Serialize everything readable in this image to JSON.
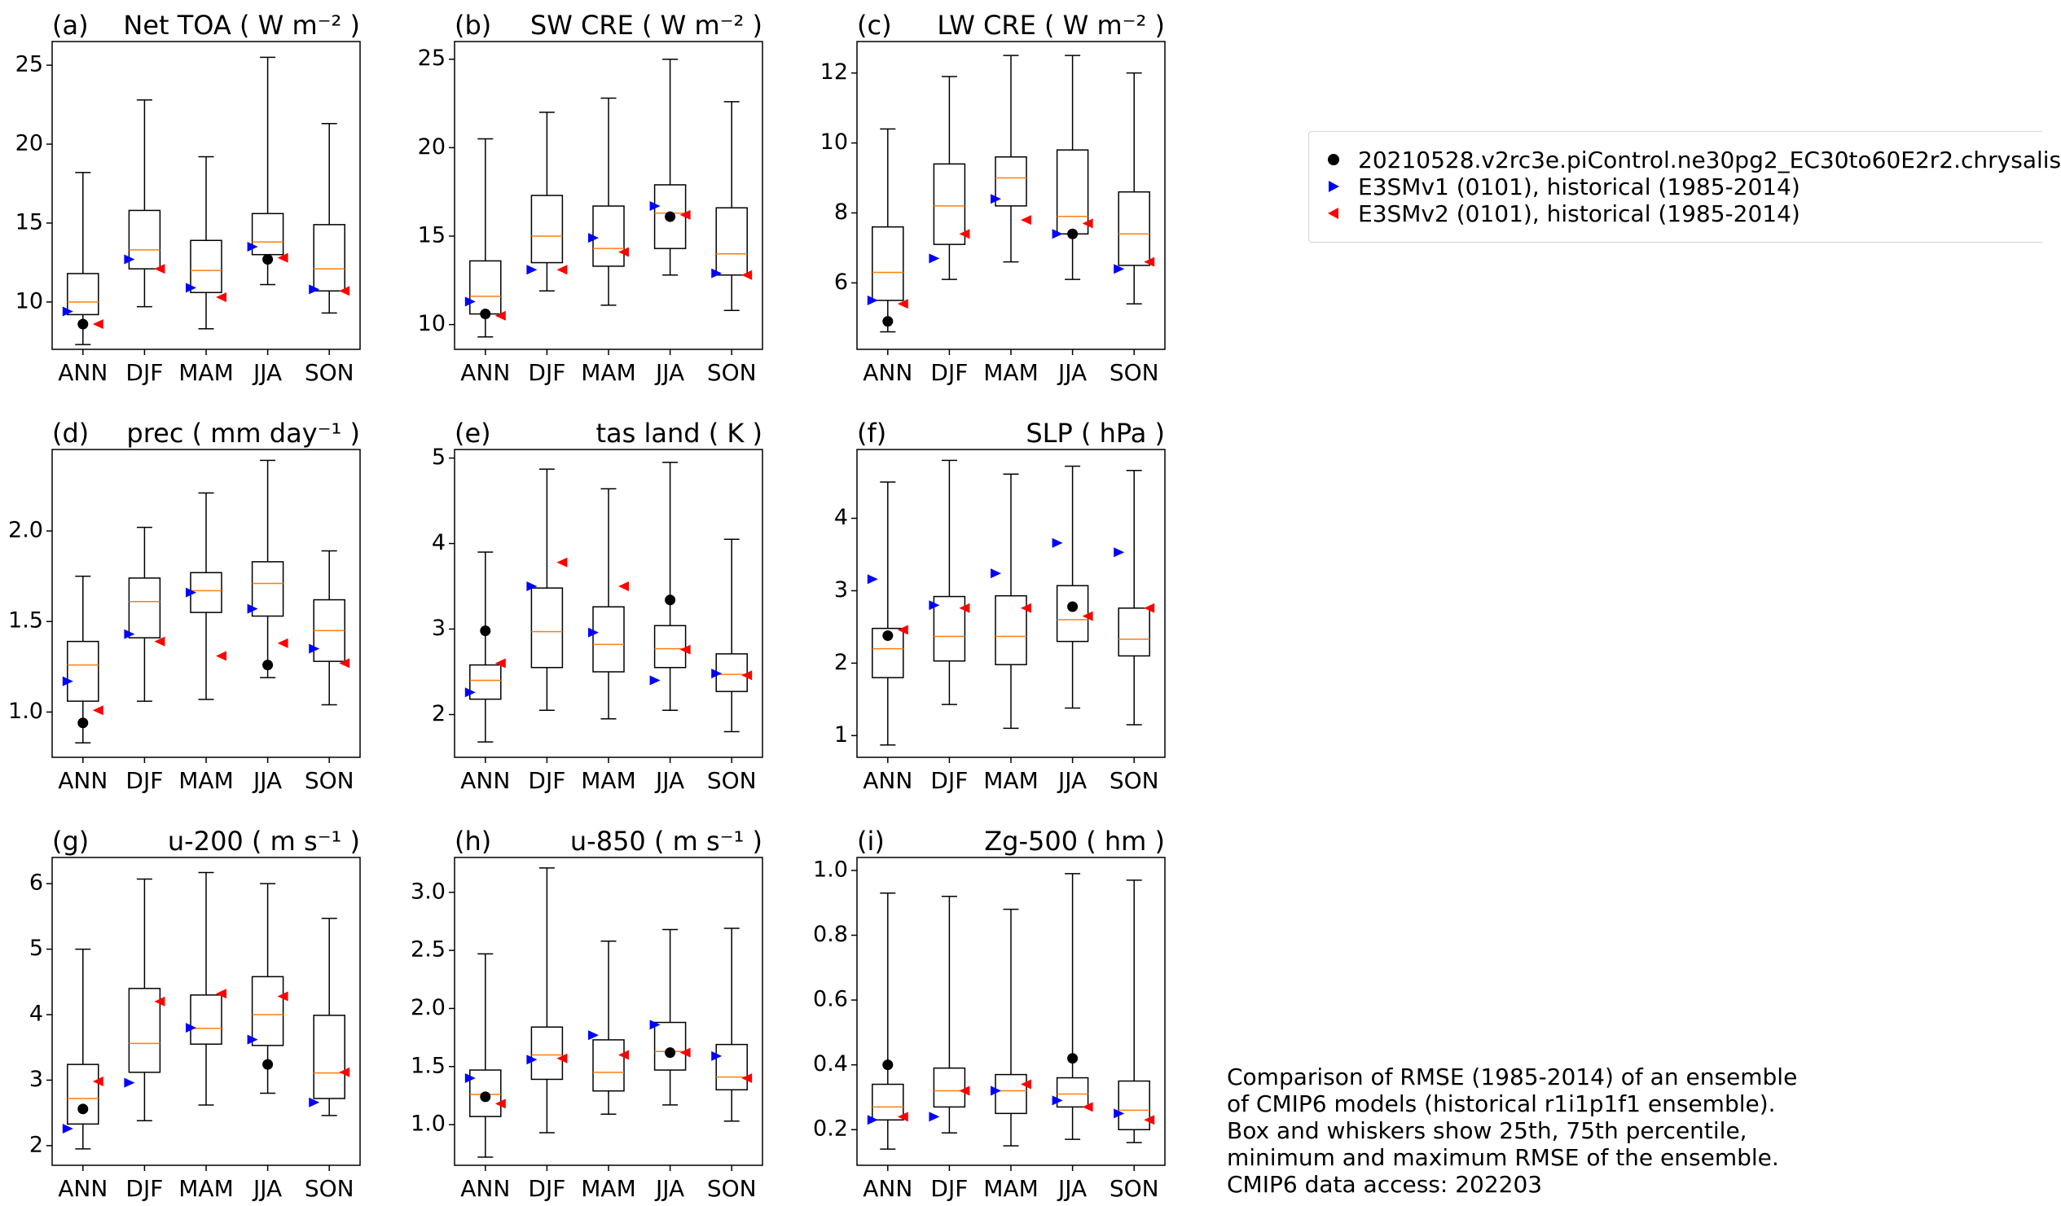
{
  "figure": {
    "categories": [
      "ANN",
      "DJF",
      "MAM",
      "JJA",
      "SON"
    ],
    "series_colors": {
      "ensemble_box": "#000000",
      "median": "#ff7f0e",
      "test": "#000000",
      "e3smv1": "#0000ff",
      "e3smv2": "#ff0000"
    }
  },
  "legend": {
    "items": [
      {
        "label": "20210528.v2rc3e.piControl.ne30pg2_EC30to60E2r2.chrysalis",
        "marker": "circle",
        "color": "#000000"
      },
      {
        "label": "E3SMv1 (0101), historical (1985-2014)",
        "marker": "triangle-right",
        "color": "#0000ff"
      },
      {
        "label": "E3SMv2 (0101), historical (1985-2014)",
        "marker": "triangle-left",
        "color": "#ff0000"
      }
    ]
  },
  "note": {
    "lines": [
      "Comparison of RMSE (1985-2014) of an ensemble",
      "of CMIP6 models (historical r1i1p1f1 ensemble).",
      "Box and whiskers show 25th, 75th percentile,",
      "minimum and maximum RMSE of the ensemble.",
      "CMIP6 data access: 202203"
    ]
  },
  "chart_data": [
    {
      "type": "box",
      "panel": "(a)",
      "title": "Net TOA ( W m⁻² )",
      "ylim": [
        7.0,
        26.5
      ],
      "yticks": [
        10,
        15,
        20,
        25
      ],
      "ytick_labels": [
        "10",
        "15",
        "20",
        "25"
      ],
      "categories": [
        "ANN",
        "DJF",
        "MAM",
        "JJA",
        "SON"
      ],
      "boxes": [
        {
          "min": 7.3,
          "q1": 9.2,
          "median": 10.0,
          "q3": 11.8,
          "max": 18.2
        },
        {
          "min": 9.7,
          "q1": 12.1,
          "median": 13.3,
          "q3": 15.8,
          "max": 22.8
        },
        {
          "min": 8.3,
          "q1": 10.6,
          "median": 12.0,
          "q3": 13.9,
          "max": 19.2
        },
        {
          "min": 11.1,
          "q1": 13.0,
          "median": 13.8,
          "q3": 15.6,
          "max": 25.5
        },
        {
          "min": 9.3,
          "q1": 10.7,
          "median": 12.1,
          "q3": 14.9,
          "max": 21.3
        }
      ],
      "test": [
        8.6,
        null,
        null,
        12.7,
        null
      ],
      "e3smv1": [
        9.4,
        12.7,
        10.9,
        13.5,
        10.8
      ],
      "e3smv2": [
        8.6,
        12.1,
        10.3,
        12.8,
        10.7
      ]
    },
    {
      "type": "box",
      "panel": "(b)",
      "title": "SW CRE ( W m⁻² )",
      "ylim": [
        8.6,
        26.0
      ],
      "yticks": [
        10,
        15,
        20,
        25
      ],
      "ytick_labels": [
        "10",
        "15",
        "20",
        "25"
      ],
      "categories": [
        "ANN",
        "DJF",
        "MAM",
        "JJA",
        "SON"
      ],
      "boxes": [
        {
          "min": 9.3,
          "q1": 10.6,
          "median": 11.6,
          "q3": 13.6,
          "max": 20.5
        },
        {
          "min": 11.9,
          "q1": 13.5,
          "median": 15.0,
          "q3": 17.3,
          "max": 22.0
        },
        {
          "min": 11.1,
          "q1": 13.3,
          "median": 14.3,
          "q3": 16.7,
          "max": 22.8
        },
        {
          "min": 12.8,
          "q1": 14.3,
          "median": 16.3,
          "q3": 17.9,
          "max": 25.0
        },
        {
          "min": 10.8,
          "q1": 12.8,
          "median": 14.0,
          "q3": 16.6,
          "max": 22.6
        }
      ],
      "test": [
        10.6,
        null,
        null,
        16.1,
        null
      ],
      "e3smv1": [
        11.3,
        13.1,
        14.9,
        16.7,
        12.9
      ],
      "e3smv2": [
        10.5,
        13.1,
        14.1,
        16.2,
        12.8
      ]
    },
    {
      "type": "box",
      "panel": "(c)",
      "title": "LW CRE ( W m⁻² )",
      "ylim": [
        4.1,
        12.9
      ],
      "yticks": [
        6,
        8,
        10,
        12
      ],
      "ytick_labels": [
        "6",
        "8",
        "10",
        "12"
      ],
      "categories": [
        "ANN",
        "DJF",
        "MAM",
        "JJA",
        "SON"
      ],
      "boxes": [
        {
          "min": 4.6,
          "q1": 5.5,
          "median": 6.3,
          "q3": 7.6,
          "max": 10.4
        },
        {
          "min": 6.1,
          "q1": 7.1,
          "median": 8.2,
          "q3": 9.4,
          "max": 11.9
        },
        {
          "min": 6.6,
          "q1": 8.2,
          "median": 9.0,
          "q3": 9.6,
          "max": 12.5
        },
        {
          "min": 6.1,
          "q1": 7.4,
          "median": 7.9,
          "q3": 9.8,
          "max": 12.5
        },
        {
          "min": 5.4,
          "q1": 6.5,
          "median": 7.4,
          "q3": 8.6,
          "max": 12.0
        }
      ],
      "test": [
        4.9,
        null,
        null,
        7.4,
        null
      ],
      "e3smv1": [
        5.5,
        6.7,
        8.4,
        7.4,
        6.4
      ],
      "e3smv2": [
        5.4,
        7.4,
        7.8,
        7.7,
        6.6
      ]
    },
    {
      "type": "box",
      "panel": "(d)",
      "title": "prec ( mm day⁻¹ )",
      "ylim": [
        0.75,
        2.45
      ],
      "yticks": [
        1.0,
        1.5,
        2.0
      ],
      "ytick_labels": [
        "1.0",
        "1.5",
        "2.0"
      ],
      "categories": [
        "ANN",
        "DJF",
        "MAM",
        "JJA",
        "SON"
      ],
      "boxes": [
        {
          "min": 0.83,
          "q1": 1.06,
          "median": 1.26,
          "q3": 1.39,
          "max": 1.75
        },
        {
          "min": 1.06,
          "q1": 1.41,
          "median": 1.61,
          "q3": 1.74,
          "max": 2.02
        },
        {
          "min": 1.07,
          "q1": 1.55,
          "median": 1.67,
          "q3": 1.77,
          "max": 2.21
        },
        {
          "min": 1.19,
          "q1": 1.53,
          "median": 1.71,
          "q3": 1.83,
          "max": 2.39
        },
        {
          "min": 1.04,
          "q1": 1.28,
          "median": 1.45,
          "q3": 1.62,
          "max": 1.89
        }
      ],
      "test": [
        0.94,
        null,
        null,
        1.26,
        null
      ],
      "e3smv1": [
        1.17,
        1.43,
        1.66,
        1.57,
        1.35
      ],
      "e3smv2": [
        1.01,
        1.39,
        1.31,
        1.38,
        1.27
      ]
    },
    {
      "type": "box",
      "panel": "(e)",
      "title": "tas land ( K )",
      "ylim": [
        1.5,
        5.1
      ],
      "yticks": [
        2,
        3,
        4,
        5
      ],
      "ytick_labels": [
        "2",
        "3",
        "4",
        "5"
      ],
      "categories": [
        "ANN",
        "DJF",
        "MAM",
        "JJA",
        "SON"
      ],
      "boxes": [
        {
          "min": 1.68,
          "q1": 2.18,
          "median": 2.4,
          "q3": 2.58,
          "max": 3.9
        },
        {
          "min": 2.05,
          "q1": 2.55,
          "median": 2.97,
          "q3": 3.48,
          "max": 4.87
        },
        {
          "min": 1.95,
          "q1": 2.5,
          "median": 2.82,
          "q3": 3.26,
          "max": 4.64
        },
        {
          "min": 2.05,
          "q1": 2.55,
          "median": 2.77,
          "q3": 3.04,
          "max": 4.95
        },
        {
          "min": 1.8,
          "q1": 2.27,
          "median": 2.47,
          "q3": 2.71,
          "max": 4.05
        }
      ],
      "test": [
        2.98,
        null,
        null,
        3.34,
        null
      ],
      "e3smv1": [
        2.26,
        3.5,
        2.96,
        2.4,
        2.48
      ],
      "e3smv2": [
        2.6,
        3.78,
        3.5,
        2.76,
        2.46
      ]
    },
    {
      "type": "box",
      "panel": "(f)",
      "title": "SLP ( hPa )",
      "ylim": [
        0.7,
        4.95
      ],
      "yticks": [
        1,
        2,
        3,
        4
      ],
      "ytick_labels": [
        "1",
        "2",
        "3",
        "4"
      ],
      "categories": [
        "ANN",
        "DJF",
        "MAM",
        "JJA",
        "SON"
      ],
      "boxes": [
        {
          "min": 0.87,
          "q1": 1.8,
          "median": 2.2,
          "q3": 2.48,
          "max": 4.5
        },
        {
          "min": 1.43,
          "q1": 2.03,
          "median": 2.37,
          "q3": 2.92,
          "max": 4.8
        },
        {
          "min": 1.1,
          "q1": 1.98,
          "median": 2.37,
          "q3": 2.93,
          "max": 4.61
        },
        {
          "min": 1.38,
          "q1": 2.3,
          "median": 2.6,
          "q3": 3.07,
          "max": 4.72
        },
        {
          "min": 1.15,
          "q1": 2.1,
          "median": 2.33,
          "q3": 2.76,
          "max": 4.66
        }
      ],
      "test": [
        2.38,
        null,
        null,
        2.78,
        null
      ],
      "e3smv1": [
        3.16,
        2.8,
        3.24,
        3.66,
        3.53
      ],
      "e3smv2": [
        2.46,
        2.76,
        2.76,
        2.65,
        2.76
      ]
    },
    {
      "type": "box",
      "panel": "(g)",
      "title": "u-200 ( m s⁻¹ )",
      "ylim": [
        1.7,
        6.4
      ],
      "yticks": [
        2,
        3,
        4,
        5,
        6
      ],
      "ytick_labels": [
        "2",
        "3",
        "4",
        "5",
        "6"
      ],
      "categories": [
        "ANN",
        "DJF",
        "MAM",
        "JJA",
        "SON"
      ],
      "boxes": [
        {
          "min": 1.95,
          "q1": 2.33,
          "median": 2.72,
          "q3": 3.24,
          "max": 5.0
        },
        {
          "min": 2.38,
          "q1": 3.12,
          "median": 3.56,
          "q3": 4.4,
          "max": 6.07
        },
        {
          "min": 2.62,
          "q1": 3.55,
          "median": 3.79,
          "q3": 4.3,
          "max": 6.17
        },
        {
          "min": 2.8,
          "q1": 3.53,
          "median": 4.0,
          "q3": 4.58,
          "max": 6.0
        },
        {
          "min": 2.46,
          "q1": 2.72,
          "median": 3.11,
          "q3": 3.99,
          "max": 5.47
        }
      ],
      "test": [
        2.56,
        null,
        null,
        3.24,
        null
      ],
      "e3smv1": [
        2.26,
        2.96,
        3.8,
        3.62,
        2.66
      ],
      "e3smv2": [
        2.98,
        4.2,
        4.32,
        4.28,
        3.12
      ]
    },
    {
      "type": "box",
      "panel": "(h)",
      "title": "u-850 ( m s⁻¹ )",
      "ylim": [
        0.65,
        3.3
      ],
      "yticks": [
        1.0,
        1.5,
        2.0,
        2.5,
        3.0
      ],
      "ytick_labels": [
        "1.0",
        "1.5",
        "2.0",
        "2.5",
        "3.0"
      ],
      "categories": [
        "ANN",
        "DJF",
        "MAM",
        "JJA",
        "SON"
      ],
      "boxes": [
        {
          "min": 0.72,
          "q1": 1.07,
          "median": 1.26,
          "q3": 1.47,
          "max": 2.47
        },
        {
          "min": 0.93,
          "q1": 1.39,
          "median": 1.6,
          "q3": 1.84,
          "max": 3.21
        },
        {
          "min": 1.09,
          "q1": 1.29,
          "median": 1.45,
          "q3": 1.73,
          "max": 2.58
        },
        {
          "min": 1.17,
          "q1": 1.47,
          "median": 1.63,
          "q3": 1.88,
          "max": 2.68
        },
        {
          "min": 1.03,
          "q1": 1.3,
          "median": 1.41,
          "q3": 1.69,
          "max": 2.69
        }
      ],
      "test": [
        1.24,
        null,
        null,
        1.62,
        null
      ],
      "e3smv1": [
        1.4,
        1.56,
        1.77,
        1.86,
        1.59
      ],
      "e3smv2": [
        1.18,
        1.57,
        1.6,
        1.62,
        1.4
      ]
    },
    {
      "type": "box",
      "panel": "(i)",
      "title": "Zg-500 ( hm )",
      "ylim": [
        0.09,
        1.04
      ],
      "yticks": [
        0.2,
        0.4,
        0.6,
        0.8,
        1.0
      ],
      "ytick_labels": [
        "0.2",
        "0.4",
        "0.6",
        "0.8",
        "1.0"
      ],
      "categories": [
        "ANN",
        "DJF",
        "MAM",
        "JJA",
        "SON"
      ],
      "boxes": [
        {
          "min": 0.14,
          "q1": 0.23,
          "median": 0.27,
          "q3": 0.34,
          "max": 0.93
        },
        {
          "min": 0.19,
          "q1": 0.27,
          "median": 0.32,
          "q3": 0.39,
          "max": 0.92
        },
        {
          "min": 0.15,
          "q1": 0.25,
          "median": 0.32,
          "q3": 0.37,
          "max": 0.88
        },
        {
          "min": 0.17,
          "q1": 0.27,
          "median": 0.31,
          "q3": 0.36,
          "max": 0.99
        },
        {
          "min": 0.16,
          "q1": 0.2,
          "median": 0.26,
          "q3": 0.35,
          "max": 0.97
        }
      ],
      "test": [
        0.4,
        null,
        null,
        0.42,
        null
      ],
      "e3smv1": [
        0.23,
        0.24,
        0.32,
        0.29,
        0.25
      ],
      "e3smv2": [
        0.24,
        0.32,
        0.34,
        0.27,
        0.23
      ]
    }
  ]
}
